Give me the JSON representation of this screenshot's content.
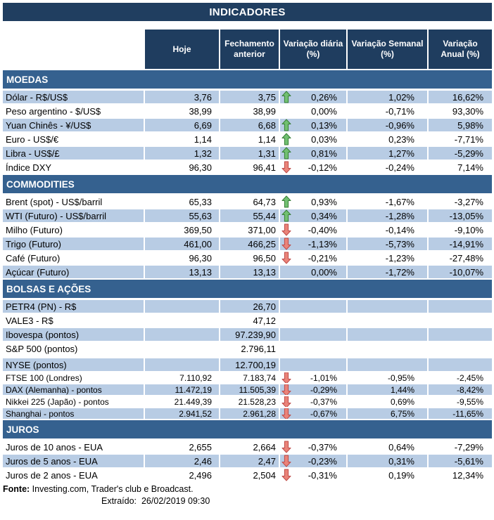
{
  "title": "INDICADORES",
  "columns": [
    "Hoje",
    "Fechamento anterior",
    "Variação diária (%)",
    "Variação Semanal (%)",
    "Variação Anual (%)"
  ],
  "colors": {
    "title_bar": "#203E60",
    "column_header": "#1F3D5F",
    "section_bar": "#35618F",
    "row_stripe": "#B8CCE4",
    "arrow_up_fill": "#71C071",
    "arrow_up_stroke": "#377E37",
    "arrow_down_fill": "#EA8379",
    "arrow_down_stroke": "#BE4B48"
  },
  "sections": [
    {
      "name": "MOEDAS",
      "rows": [
        {
          "label": "Dólar - R$/US$",
          "hoje": "3,76",
          "fechamento": "3,75",
          "arrow": "up",
          "diaria": "0,26%",
          "semanal": "1,02%",
          "anual": "16,62%",
          "striped": true
        },
        {
          "label": "Peso argentino - $/US$",
          "hoje": "38,99",
          "fechamento": "38,99",
          "arrow": "none",
          "diaria": "0,00%",
          "semanal": "-0,71%",
          "anual": "93,30%",
          "striped": false
        },
        {
          "label": "Yuan Chinês - ¥/US$",
          "hoje": "6,69",
          "fechamento": "6,68",
          "arrow": "up",
          "diaria": "0,13%",
          "semanal": "-0,96%",
          "anual": "5,98%",
          "striped": true
        },
        {
          "label": "Euro - US$/€",
          "hoje": "1,14",
          "fechamento": "1,14",
          "arrow": "up",
          "diaria": "0,03%",
          "semanal": "0,23%",
          "anual": "-7,71%",
          "striped": false
        },
        {
          "label": "Libra - US$/£",
          "hoje": "1,32",
          "fechamento": "1,31",
          "arrow": "up",
          "diaria": "0,81%",
          "semanal": "1,27%",
          "anual": "-5,29%",
          "striped": true
        },
        {
          "label": "Índice DXY",
          "hoje": "96,30",
          "fechamento": "96,41",
          "arrow": "down",
          "diaria": "-0,12%",
          "semanal": "-0,24%",
          "anual": "7,14%",
          "striped": false
        }
      ]
    },
    {
      "name": "COMMODITIES",
      "rows": [
        {
          "label": "Brent (spot) - US$/barril",
          "hoje": "65,33",
          "fechamento": "64,73",
          "arrow": "up",
          "diaria": "0,93%",
          "semanal": "-1,67%",
          "anual": "-3,27%",
          "striped": false
        },
        {
          "label": "WTI (Futuro) - US$/barril",
          "hoje": "55,63",
          "fechamento": "55,44",
          "arrow": "up",
          "diaria": "0,34%",
          "semanal": "-1,28%",
          "anual": "-13,05%",
          "striped": true
        },
        {
          "label": "Milho (Futuro)",
          "hoje": "369,50",
          "fechamento": "371,00",
          "arrow": "down",
          "diaria": "-0,40%",
          "semanal": "-0,14%",
          "anual": "-9,10%",
          "striped": false
        },
        {
          "label": "Trigo (Futuro)",
          "hoje": "461,00",
          "fechamento": "466,25",
          "arrow": "down",
          "diaria": "-1,13%",
          "semanal": "-5,73%",
          "anual": "-14,91%",
          "striped": true
        },
        {
          "label": "Café (Futuro)",
          "hoje": "96,30",
          "fechamento": "96,50",
          "arrow": "down",
          "diaria": "-0,21%",
          "semanal": "-1,23%",
          "anual": "-27,48%",
          "striped": false
        },
        {
          "label": "Açúcar (Futuro)",
          "hoje": "13,13",
          "fechamento": "13,13",
          "arrow": "none",
          "diaria": "0,00%",
          "semanal": "-1,72%",
          "anual": "-10,07%",
          "striped": true
        }
      ]
    },
    {
      "name": "BOLSAS E AÇÕES",
      "rows": [
        {
          "label": "PETR4 (PN) - R$",
          "hoje": "",
          "fechamento": "26,70",
          "arrow": "none",
          "diaria": "",
          "semanal": "",
          "anual": "",
          "striped": true
        },
        {
          "label": "VALE3 - R$",
          "hoje": "",
          "fechamento": "47,12",
          "arrow": "none",
          "diaria": "",
          "semanal": "",
          "anual": "",
          "striped": false
        },
        {
          "label": "Ibovespa (pontos)",
          "hoje": "",
          "fechamento": "97.239,90",
          "arrow": "none",
          "diaria": "",
          "semanal": "",
          "anual": "",
          "striped": true
        },
        {
          "label": "S&P 500 (pontos)",
          "hoje": "",
          "fechamento": "2.796,11",
          "arrow": "none",
          "diaria": "",
          "semanal": "",
          "anual": "",
          "striped": false
        },
        {
          "label": "NYSE (pontos)",
          "hoje": "",
          "fechamento": "12.700,19",
          "arrow": "none",
          "diaria": "",
          "semanal": "",
          "anual": "",
          "striped": true,
          "spacer_before": true
        },
        {
          "label": "FTSE 100 (Londres)",
          "hoje": "7.110,92",
          "fechamento": "7.183,74",
          "arrow": "down",
          "diaria": "-1,01%",
          "semanal": "-0,95%",
          "anual": "-2,45%",
          "striped": false,
          "compact": true
        },
        {
          "label": "DAX (Alemanha) - pontos",
          "hoje": "11.472,19",
          "fechamento": "11.505,39",
          "arrow": "down",
          "diaria": "-0,29%",
          "semanal": "1,44%",
          "anual": "-8,42%",
          "striped": true,
          "compact": true
        },
        {
          "label": "Nikkei 225 (Japão) - pontos",
          "hoje": "21.449,39",
          "fechamento": "21.528,23",
          "arrow": "down",
          "diaria": "-0,37%",
          "semanal": "0,69%",
          "anual": "-9,55%",
          "striped": false,
          "compact": true
        },
        {
          "label": "Shanghai - pontos",
          "hoje": "2.941,52",
          "fechamento": "2.961,28",
          "arrow": "down",
          "diaria": "-0,67%",
          "semanal": "6,75%",
          "anual": "-11,65%",
          "striped": true,
          "compact": true
        }
      ]
    },
    {
      "name": "JUROS",
      "rows": [
        {
          "label": "Juros de 10 anos - EUA",
          "hoje": "2,655",
          "fechamento": "2,664",
          "arrow": "down",
          "diaria": "-0,37%",
          "semanal": "0,64%",
          "anual": "-7,29%",
          "striped": false
        },
        {
          "label": "Juros de 5 anos - EUA",
          "hoje": "2,46",
          "fechamento": "2,47",
          "arrow": "down",
          "diaria": "-0,23%",
          "semanal": "0,31%",
          "anual": "-5,61%",
          "striped": true
        },
        {
          "label": "Juros de 2 anos - EUA",
          "hoje": "2,496",
          "fechamento": "2,504",
          "arrow": "down",
          "diaria": "-0,31%",
          "semanal": "0,19%",
          "anual": "12,34%",
          "striped": false
        }
      ]
    }
  ],
  "footer": {
    "fonte_label": "Fonte:",
    "fonte_text": " Investing.com, Trader's club e Broadcast.",
    "extraido_label": "Extraído:",
    "extraido_value": "26/02/2019 09:30"
  }
}
